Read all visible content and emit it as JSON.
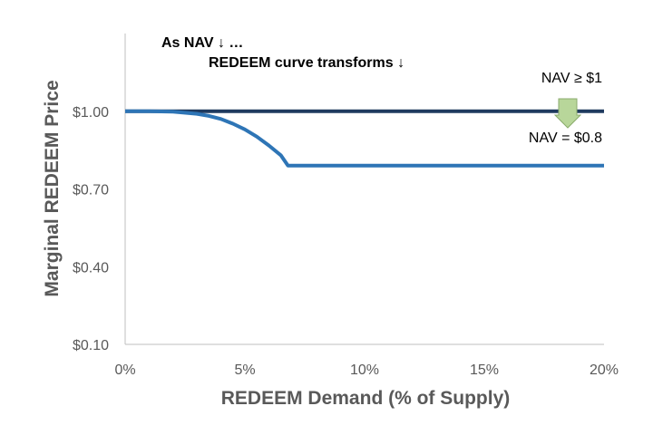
{
  "chart_data": {
    "type": "line",
    "xlabel": "REDEEM Demand (% of Supply)",
    "ylabel": "Marginal REDEEM Price",
    "x_ticks": [
      "0%",
      "5%",
      "10%",
      "15%",
      "20%"
    ],
    "y_ticks": [
      "$0.10",
      "$0.40",
      "$0.70",
      "$1.00"
    ],
    "xlim": [
      0,
      20
    ],
    "ylim": [
      0.1,
      1.3
    ],
    "grid": false,
    "annotations": [
      "As NAV ↓ …",
      "REDEEM curve transforms ↓"
    ],
    "series": [
      {
        "name": "NAV ≥ $1",
        "color": "#1f3a5f",
        "x": [
          0,
          20
        ],
        "y": [
          1.0,
          1.0
        ]
      },
      {
        "name": "NAV = $0.8",
        "color": "#2e75b6",
        "x": [
          0,
          1,
          2,
          3,
          3.5,
          4,
          4.5,
          5,
          5.5,
          6,
          6.5,
          6.8,
          10,
          15,
          20
        ],
        "y": [
          1.0,
          1.0,
          0.998,
          0.99,
          0.982,
          0.97,
          0.952,
          0.93,
          0.902,
          0.868,
          0.83,
          0.79,
          0.79,
          0.79,
          0.79
        ]
      }
    ],
    "arrow": {
      "color": "#b8d69a",
      "stroke": "#8aab6c",
      "direction": "down"
    }
  }
}
